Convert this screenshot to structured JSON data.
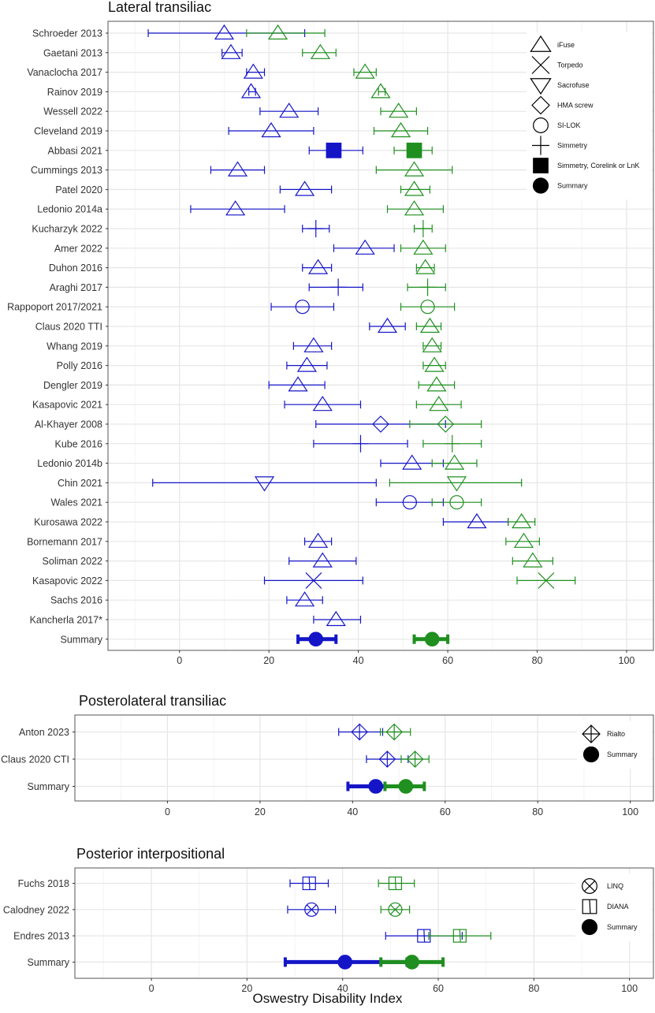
{
  "figure": {
    "xlabel": "Oswestry Disability Index"
  },
  "colors": {
    "series_a": "#1515c8",
    "series_b": "#1f8f1f",
    "grid": "#e6e6e6",
    "panel_border": "#555555",
    "text": "#333333"
  },
  "chart_data": [
    {
      "type": "forest",
      "title": "Lateral transiliac",
      "xlim": [
        -16,
        106
      ],
      "xticks": [
        0,
        20,
        40,
        60,
        80,
        100
      ],
      "grid": true,
      "legend_position": "right",
      "legend": [
        {
          "label": "iFuse",
          "shape": "triangle-up"
        },
        {
          "label": "Torpedo",
          "shape": "x"
        },
        {
          "label": "Sacrofuse",
          "shape": "triangle-down"
        },
        {
          "label": "HMA screw",
          "shape": "diamond"
        },
        {
          "label": "SI-LOK",
          "shape": "circle-open"
        },
        {
          "label": "Simmetry",
          "shape": "plus"
        },
        {
          "label": "Simmetry, Corelink or LnK",
          "shape": "square-filled"
        },
        {
          "label": "Summary",
          "shape": "circle-filled"
        }
      ],
      "studies": [
        "Schroeder 2013",
        "Gaetani 2013",
        "Vanaclocha 2017",
        "Rainov 2019",
        "Wessell 2022",
        "Cleveland 2019",
        "Abbasi 2021",
        "Cummings 2013",
        "Patel 2020",
        "Ledonio 2014a",
        "Kucharzyk 2022",
        "Amer 2022",
        "Duhon 2016",
        "Araghi 2017",
        "Rappoport 2017/2021",
        "Claus 2020 TTI",
        "Whang 2019",
        "Polly 2016",
        "Dengler 2019",
        "Kasapovic 2021",
        "Al-Khayer 2008",
        "Kube 2016",
        "Ledonio 2014b",
        "Chin 2021",
        "Wales 2021",
        "Kurosawa 2022",
        "Bornemann 2017",
        "Soliman 2022",
        "Kasapovic 2022",
        "Sachs 2016",
        "Kancherla 2017*",
        "Summary"
      ],
      "series": [
        {
          "series_key": "series_a",
          "points": [
            {
              "y": 0,
              "x": 10,
              "lo": -7,
              "hi": 28,
              "shape": "triangle-up"
            },
            {
              "y": 1,
              "x": 11.5,
              "lo": 9.5,
              "hi": 14,
              "shape": "triangle-up"
            },
            {
              "y": 2,
              "x": 16.5,
              "lo": 15,
              "hi": 19,
              "shape": "triangle-up"
            },
            {
              "y": 3,
              "x": 16,
              "lo": 15.5,
              "hi": 17,
              "shape": "triangle-up"
            },
            {
              "y": 4,
              "x": 24.5,
              "lo": 18,
              "hi": 31,
              "shape": "triangle-up"
            },
            {
              "y": 5,
              "x": 20.5,
              "lo": 11,
              "hi": 30,
              "shape": "triangle-up"
            },
            {
              "y": 6,
              "x": 34.5,
              "lo": 29,
              "hi": 41,
              "shape": "square-filled"
            },
            {
              "y": 7,
              "x": 13,
              "lo": 7,
              "hi": 19,
              "shape": "triangle-up"
            },
            {
              "y": 8,
              "x": 28,
              "lo": 22.5,
              "hi": 34,
              "shape": "triangle-up"
            },
            {
              "y": 9,
              "x": 12.5,
              "lo": 2.5,
              "hi": 23.5,
              "shape": "triangle-up"
            },
            {
              "y": 10,
              "x": 30.5,
              "lo": 27.5,
              "hi": 33.5,
              "shape": "plus"
            },
            {
              "y": 11,
              "x": 41.5,
              "lo": 34.5,
              "hi": 48,
              "shape": "triangle-up"
            },
            {
              "y": 12,
              "x": 31,
              "lo": 27.5,
              "hi": 34,
              "shape": "triangle-up"
            },
            {
              "y": 13,
              "x": 35.5,
              "lo": 29,
              "hi": 41,
              "shape": "plus"
            },
            {
              "y": 14,
              "x": 27.5,
              "lo": 20.5,
              "hi": 34.5,
              "shape": "circle-open"
            },
            {
              "y": 15,
              "x": 46.5,
              "lo": 42.5,
              "hi": 50.5,
              "shape": "triangle-up"
            },
            {
              "y": 16,
              "x": 30,
              "lo": 25.5,
              "hi": 34,
              "shape": "triangle-up"
            },
            {
              "y": 17,
              "x": 28.5,
              "lo": 24,
              "hi": 33,
              "shape": "triangle-up"
            },
            {
              "y": 18,
              "x": 26.5,
              "lo": 20,
              "hi": 32.5,
              "shape": "triangle-up"
            },
            {
              "y": 19,
              "x": 32,
              "lo": 23.5,
              "hi": 40.5,
              "shape": "triangle-up"
            },
            {
              "y": 20,
              "x": 45,
              "lo": 30.5,
              "hi": 59.5,
              "shape": "diamond"
            },
            {
              "y": 21,
              "x": 40.5,
              "lo": 30,
              "hi": 51,
              "shape": "plus"
            },
            {
              "y": 22,
              "x": 52,
              "lo": 45,
              "hi": 59,
              "shape": "triangle-up"
            },
            {
              "y": 23,
              "x": 19,
              "lo": -6,
              "hi": 44,
              "shape": "triangle-down"
            },
            {
              "y": 24,
              "x": 51.5,
              "lo": 44,
              "hi": 59,
              "shape": "circle-open"
            },
            {
              "y": 25,
              "x": 66.5,
              "lo": 59,
              "hi": 73.5,
              "shape": "triangle-up"
            },
            {
              "y": 26,
              "x": 31,
              "lo": 28,
              "hi": 34,
              "shape": "triangle-up"
            },
            {
              "y": 27,
              "x": 32,
              "lo": 24.5,
              "hi": 39.5,
              "shape": "triangle-up"
            },
            {
              "y": 28,
              "x": 30,
              "lo": 19,
              "hi": 41,
              "shape": "x"
            },
            {
              "y": 29,
              "x": 28,
              "lo": 24,
              "hi": 32,
              "shape": "triangle-up"
            },
            {
              "y": 30,
              "x": 35,
              "lo": 30,
              "hi": 40.5,
              "shape": "triangle-up"
            },
            {
              "y": 31,
              "x": 30.5,
              "lo": 26.5,
              "hi": 35,
              "shape": "summary"
            }
          ]
        },
        {
          "series_key": "series_b",
          "points": [
            {
              "y": 0,
              "x": 22,
              "lo": 15,
              "hi": 32.5,
              "shape": "triangle-up"
            },
            {
              "y": 1,
              "x": 31.5,
              "lo": 27.5,
              "hi": 35,
              "shape": "triangle-up"
            },
            {
              "y": 2,
              "x": 41.5,
              "lo": 39,
              "hi": 44,
              "shape": "triangle-up"
            },
            {
              "y": 3,
              "x": 45,
              "lo": 44.5,
              "hi": 46,
              "shape": "triangle-up"
            },
            {
              "y": 4,
              "x": 49,
              "lo": 45,
              "hi": 53,
              "shape": "triangle-up"
            },
            {
              "y": 5,
              "x": 49.5,
              "lo": 43.5,
              "hi": 55.5,
              "shape": "triangle-up"
            },
            {
              "y": 6,
              "x": 52.5,
              "lo": 48,
              "hi": 56.5,
              "shape": "square-filled"
            },
            {
              "y": 7,
              "x": 52.5,
              "lo": 44,
              "hi": 61,
              "shape": "triangle-up"
            },
            {
              "y": 8,
              "x": 52.5,
              "lo": 49.5,
              "hi": 56,
              "shape": "triangle-up"
            },
            {
              "y": 9,
              "x": 52.5,
              "lo": 46.5,
              "hi": 59,
              "shape": "triangle-up"
            },
            {
              "y": 10,
              "x": 54.5,
              "lo": 52.5,
              "hi": 56.5,
              "shape": "plus"
            },
            {
              "y": 11,
              "x": 54.5,
              "lo": 49.5,
              "hi": 59.5,
              "shape": "triangle-up"
            },
            {
              "y": 12,
              "x": 55,
              "lo": 53,
              "hi": 57,
              "shape": "triangle-up"
            },
            {
              "y": 13,
              "x": 55.5,
              "lo": 51,
              "hi": 59.5,
              "shape": "plus"
            },
            {
              "y": 14,
              "x": 55.5,
              "lo": 49.5,
              "hi": 61.5,
              "shape": "circle-open"
            },
            {
              "y": 15,
              "x": 56,
              "lo": 53,
              "hi": 58.5,
              "shape": "triangle-up"
            },
            {
              "y": 16,
              "x": 56.5,
              "lo": 54.5,
              "hi": 58.5,
              "shape": "triangle-up"
            },
            {
              "y": 17,
              "x": 57,
              "lo": 54.5,
              "hi": 59.5,
              "shape": "triangle-up"
            },
            {
              "y": 18,
              "x": 57.5,
              "lo": 53.5,
              "hi": 61.5,
              "shape": "triangle-up"
            },
            {
              "y": 19,
              "x": 58,
              "lo": 53,
              "hi": 63,
              "shape": "triangle-up"
            },
            {
              "y": 20,
              "x": 59.5,
              "lo": 51.5,
              "hi": 67.5,
              "shape": "diamond"
            },
            {
              "y": 21,
              "x": 61,
              "lo": 54.5,
              "hi": 67.5,
              "shape": "plus"
            },
            {
              "y": 22,
              "x": 61.5,
              "lo": 56.5,
              "hi": 66.5,
              "shape": "triangle-up"
            },
            {
              "y": 23,
              "x": 62,
              "lo": 47,
              "hi": 76.5,
              "shape": "triangle-down"
            },
            {
              "y": 24,
              "x": 62,
              "lo": 56.5,
              "hi": 67.5,
              "shape": "circle-open"
            },
            {
              "y": 25,
              "x": 76.5,
              "lo": 73.5,
              "hi": 79.5,
              "shape": "triangle-up"
            },
            {
              "y": 26,
              "x": 77,
              "lo": 73,
              "hi": 80.5,
              "shape": "triangle-up"
            },
            {
              "y": 27,
              "x": 79,
              "lo": 74.5,
              "hi": 83.5,
              "shape": "triangle-up"
            },
            {
              "y": 28,
              "x": 82,
              "lo": 75.5,
              "hi": 88.5,
              "shape": "x"
            },
            {
              "y": 31,
              "x": 56.5,
              "lo": 52.5,
              "hi": 60,
              "shape": "summary"
            }
          ]
        }
      ]
    },
    {
      "type": "forest",
      "title": "Posterolateral transiliac",
      "xlim": [
        -20,
        105
      ],
      "xticks": [
        0,
        20,
        40,
        60,
        80,
        100
      ],
      "grid": true,
      "legend_position": "right",
      "legend": [
        {
          "label": "Rialto",
          "shape": "diamond-plus"
        },
        {
          "label": "Summary",
          "shape": "circle-filled"
        }
      ],
      "studies": [
        "Anton 2023",
        "Claus 2020 CTI",
        "Summary"
      ],
      "series": [
        {
          "series_key": "series_a",
          "points": [
            {
              "y": 0,
              "x": 41.5,
              "lo": 37,
              "hi": 46.5,
              "shape": "diamond-plus"
            },
            {
              "y": 1,
              "x": 47.5,
              "lo": 43,
              "hi": 52,
              "shape": "diamond-plus"
            },
            {
              "y": 2,
              "x": 45,
              "lo": 39,
              "hi": 51,
              "shape": "summary"
            }
          ]
        },
        {
          "series_key": "series_b",
          "points": [
            {
              "y": 0,
              "x": 49,
              "lo": 46,
              "hi": 52.5,
              "shape": "diamond-plus"
            },
            {
              "y": 1,
              "x": 53.5,
              "lo": 50.5,
              "hi": 56.5,
              "shape": "diamond-plus"
            },
            {
              "y": 2,
              "x": 51.5,
              "lo": 47,
              "hi": 55.5,
              "shape": "summary"
            }
          ]
        }
      ]
    },
    {
      "type": "forest",
      "title": "Posterior interpositional",
      "xlim": [
        -16,
        105
      ],
      "xticks": [
        0,
        20,
        40,
        60,
        80,
        100
      ],
      "grid": true,
      "legend_position": "right",
      "legend": [
        {
          "label": "LINQ",
          "shape": "circle-x"
        },
        {
          "label": "DIANA",
          "shape": "square-diag"
        },
        {
          "label": "Summary",
          "shape": "circle-filled"
        }
      ],
      "studies": [
        "Fuchs 2018",
        "Calodney 2022",
        "Endres 2013",
        "Summary"
      ],
      "series": [
        {
          "series_key": "series_a",
          "points": [
            {
              "y": 0,
              "x": 33,
              "lo": 29,
              "hi": 37,
              "shape": "square-diag"
            },
            {
              "y": 1,
              "x": 33.5,
              "lo": 28.5,
              "hi": 38.5,
              "shape": "circle-x"
            },
            {
              "y": 2,
              "x": 57,
              "lo": 49,
              "hi": 65,
              "shape": "square-diag"
            },
            {
              "y": 3,
              "x": 40.5,
              "lo": 28,
              "hi": 53.5,
              "shape": "summary"
            }
          ]
        },
        {
          "series_key": "series_b",
          "points": [
            {
              "y": 0,
              "x": 51,
              "lo": 47.5,
              "hi": 55,
              "shape": "square-diag"
            },
            {
              "y": 1,
              "x": 51,
              "lo": 48,
              "hi": 54,
              "shape": "circle-x"
            },
            {
              "y": 2,
              "x": 64.5,
              "lo": 58,
              "hi": 71,
              "shape": "square-diag"
            },
            {
              "y": 3,
              "x": 54.5,
              "lo": 48,
              "hi": 61,
              "shape": "summary"
            }
          ]
        }
      ]
    }
  ]
}
